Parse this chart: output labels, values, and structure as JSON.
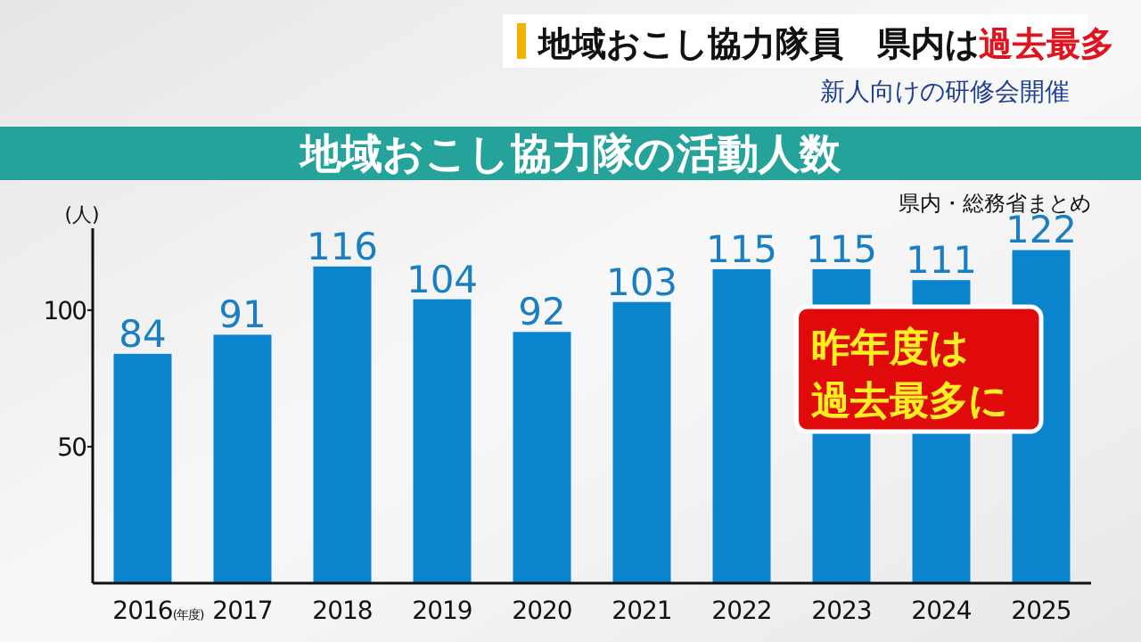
{
  "chart_data": {
    "type": "bar",
    "title": "地域おこし協力隊の活動人数",
    "ylabel": "(人)",
    "annotations": [
      "地域おこし協力隊員　県内は",
      "過去最多",
      "新人向けの研修会開催",
      "県内・総務省まとめ",
      "昨年度は",
      "過去最多に"
    ],
    "categories": [
      "2016(年度)",
      "2017",
      "2018",
      "2019",
      "2020",
      "2021",
      "2022",
      "2023",
      "2024",
      "2025"
    ],
    "values": [
      84,
      91,
      116,
      104,
      92,
      103,
      115,
      115,
      111,
      122
    ],
    "color": "#0a84cc",
    "data_labels": true,
    "ylim": [
      0,
      130
    ],
    "yticks": [
      50,
      100
    ]
  }
}
